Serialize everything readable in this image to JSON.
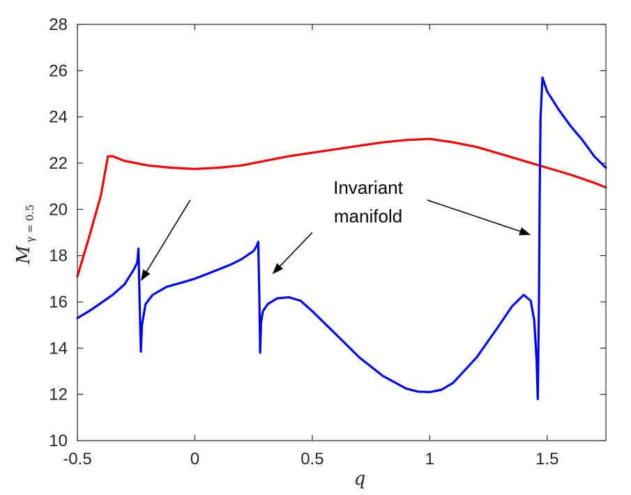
{
  "chart_data": {
    "type": "line",
    "xlabel": "q",
    "ylabel": {
      "main": "M",
      "sub": "γ = 0.5"
    },
    "xlim": [
      -0.5,
      1.75
    ],
    "ylim": [
      10,
      28
    ],
    "xticks": [
      -0.5,
      0,
      0.5,
      1,
      1.5
    ],
    "xtick_labels": [
      "-0.5",
      "0",
      "0.5",
      "1",
      "1.5"
    ],
    "yticks": [
      10,
      12,
      14,
      16,
      18,
      20,
      22,
      24,
      26,
      28
    ],
    "ytick_labels": [
      "10",
      "12",
      "14",
      "16",
      "18",
      "20",
      "22",
      "24",
      "26",
      "28"
    ],
    "grid": false,
    "series": [
      {
        "color": "#ff0000",
        "x": [
          -0.5,
          -0.45,
          -0.4,
          -0.37,
          -0.35,
          -0.3,
          -0.2,
          -0.1,
          0.0,
          0.1,
          0.2,
          0.3,
          0.4,
          0.5,
          0.6,
          0.7,
          0.8,
          0.9,
          1.0,
          1.1,
          1.2,
          1.3,
          1.4,
          1.5,
          1.6,
          1.7,
          1.75
        ],
        "y": [
          17.1,
          18.8,
          20.6,
          22.3,
          22.3,
          22.1,
          21.9,
          21.8,
          21.75,
          21.8,
          21.9,
          22.1,
          22.3,
          22.45,
          22.6,
          22.75,
          22.9,
          23.0,
          23.05,
          22.9,
          22.7,
          22.4,
          22.1,
          21.8,
          21.5,
          21.15,
          20.95
        ]
      },
      {
        "color": "#0000ff",
        "x": [
          -0.5,
          -0.45,
          -0.4,
          -0.35,
          -0.3,
          -0.26,
          -0.245,
          -0.24,
          -0.235,
          -0.23,
          -0.225,
          -0.21,
          -0.18,
          -0.12,
          -0.05,
          0.0,
          0.05,
          0.1,
          0.15,
          0.2,
          0.25,
          0.265,
          0.27,
          0.275,
          0.278,
          0.282,
          0.29,
          0.31,
          0.35,
          0.4,
          0.45,
          0.5,
          0.6,
          0.7,
          0.8,
          0.9,
          0.95,
          1.0,
          1.05,
          1.1,
          1.2,
          1.3,
          1.35,
          1.4,
          1.43,
          1.445,
          1.455,
          1.46,
          1.465,
          1.468,
          1.472,
          1.48,
          1.5,
          1.55,
          1.6,
          1.65,
          1.7,
          1.75
        ],
        "y": [
          15.3,
          15.6,
          15.95,
          16.3,
          16.75,
          17.4,
          17.7,
          18.3,
          16.0,
          13.85,
          15.0,
          15.9,
          16.3,
          16.65,
          16.85,
          17.0,
          17.2,
          17.4,
          17.6,
          17.85,
          18.2,
          18.45,
          18.6,
          16.0,
          13.8,
          15.1,
          15.6,
          15.9,
          16.15,
          16.2,
          16.05,
          15.6,
          14.6,
          13.6,
          12.8,
          12.25,
          12.12,
          12.1,
          12.2,
          12.5,
          13.6,
          15.05,
          15.8,
          16.3,
          16.05,
          15.2,
          13.5,
          11.8,
          16.0,
          20.5,
          24.0,
          25.7,
          25.1,
          24.3,
          23.6,
          23.0,
          22.3,
          21.8
        ]
      }
    ],
    "annotations": [
      {
        "lines": [
          "Invariant",
          "manifold"
        ]
      }
    ]
  }
}
